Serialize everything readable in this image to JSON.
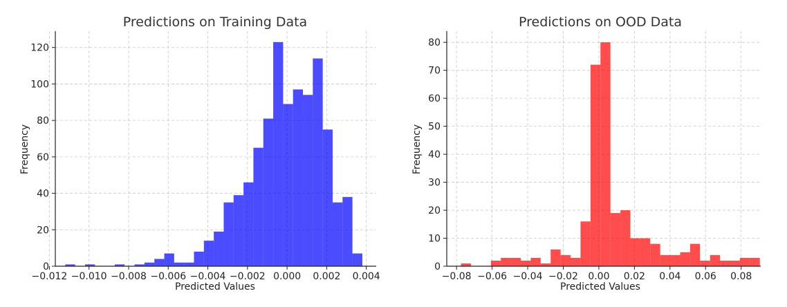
{
  "chart_data": [
    {
      "type": "bar",
      "title": "Predictions on Training Data",
      "xlabel": "Predicted Values",
      "ylabel": "Frequency",
      "xlim": [
        -0.0117,
        0.0045
      ],
      "ylim": [
        0,
        129
      ],
      "xticks": [
        -0.012,
        -0.01,
        -0.008,
        -0.006,
        -0.004,
        -0.002,
        0.0,
        0.002,
        0.004
      ],
      "xtick_labels": [
        "−0.012",
        "−0.010",
        "−0.008",
        "−0.006",
        "−0.004",
        "−0.002",
        "0.000",
        "0.002",
        "0.004"
      ],
      "yticks": [
        0,
        20,
        40,
        60,
        80,
        100,
        120
      ],
      "ytick_labels": [
        "0",
        "20",
        "40",
        "60",
        "80",
        "100",
        "120"
      ],
      "bin_edges": [
        -0.0112,
        -0.0107,
        -0.0102,
        -0.0097,
        -0.0092,
        -0.0087,
        -0.0082,
        -0.0077,
        -0.0072,
        -0.0067,
        -0.0062,
        -0.0057,
        -0.0052,
        -0.0047,
        -0.0042,
        -0.0037,
        -0.0032,
        -0.0027,
        -0.0022,
        -0.0017,
        -0.0012,
        -0.0007,
        -0.0002,
        0.0003,
        0.0008,
        0.0013,
        0.0018,
        0.0023,
        0.0028,
        0.0033,
        0.0038
      ],
      "values": [
        1,
        0,
        1,
        0,
        0,
        1,
        0,
        1,
        2,
        4,
        7,
        2,
        2,
        8,
        14,
        19,
        35,
        39,
        46,
        65,
        81,
        123,
        89,
        97,
        94,
        114,
        75,
        35,
        38,
        7
      ],
      "color": "#0000ff",
      "opacity": 0.7,
      "grid": true
    },
    {
      "type": "bar",
      "title": "Predictions on OOD Data",
      "xlabel": "Predicted Values",
      "ylabel": "Frequency",
      "xlim": [
        -0.0855,
        0.091
      ],
      "ylim": [
        0,
        84
      ],
      "xticks": [
        -0.08,
        -0.06,
        -0.04,
        -0.02,
        0.0,
        0.02,
        0.04,
        0.06,
        0.08
      ],
      "xtick_labels": [
        "−0.08",
        "−0.06",
        "−0.04",
        "−0.02",
        "0.00",
        "0.02",
        "0.04",
        "0.06",
        "0.08"
      ],
      "yticks": [
        0,
        10,
        20,
        30,
        40,
        50,
        60,
        70,
        80
      ],
      "ytick_labels": [
        "0",
        "10",
        "20",
        "30",
        "40",
        "50",
        "60",
        "70",
        "80"
      ],
      "bin_edges": [
        -0.0775,
        -0.0719,
        -0.0663,
        -0.0607,
        -0.0551,
        -0.0495,
        -0.0439,
        -0.0383,
        -0.0327,
        -0.0271,
        -0.0215,
        -0.0159,
        -0.0103,
        -0.0047,
        0.0009,
        0.0065,
        0.0121,
        0.0177,
        0.0233,
        0.0289,
        0.0345,
        0.0401,
        0.0457,
        0.0513,
        0.0569,
        0.0625,
        0.0681,
        0.0737,
        0.0793,
        0.0849,
        0.0905
      ],
      "values": [
        1,
        0,
        0,
        2,
        3,
        3,
        2,
        3,
        1,
        6,
        4,
        3,
        16,
        72,
        80,
        19,
        20,
        10,
        10,
        8,
        4,
        4,
        5,
        8,
        2,
        4,
        2,
        2,
        3,
        3
      ],
      "color": "#ff0000",
      "opacity": 0.7,
      "grid": true
    }
  ]
}
